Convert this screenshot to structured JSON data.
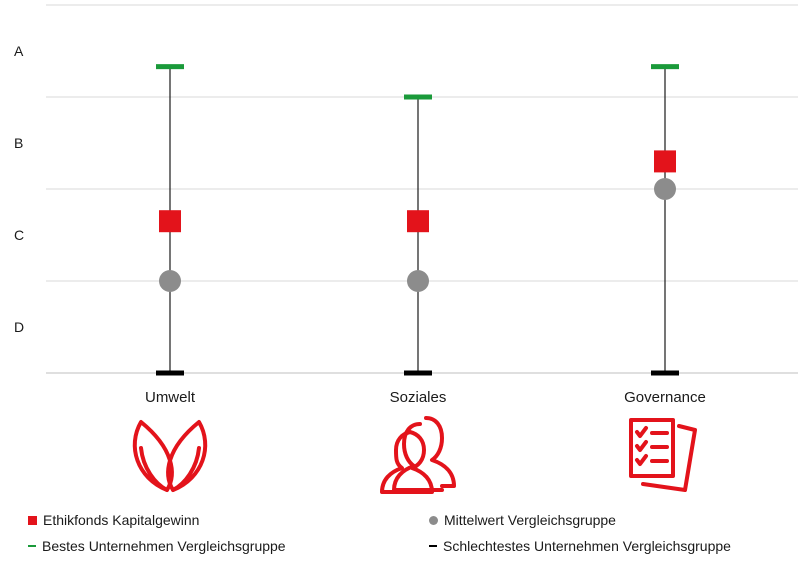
{
  "chart_data": {
    "type": "scatter",
    "title": "",
    "xlabel": "",
    "ylabel": "",
    "y_scale": [
      "A",
      "B",
      "C",
      "D"
    ],
    "y_scale_note": "Rating axis: A at top, D at bottom",
    "ylim": [
      0,
      4
    ],
    "grid": true,
    "legend_position": "bottom",
    "categories": [
      "Umwelt",
      "Soziales",
      "Governance"
    ],
    "category_icons": [
      "leaf-icon",
      "people-icon",
      "checklist-document-icon"
    ],
    "series": [
      {
        "name": "Ethikfonds Kapitalgewinn",
        "marker": "square",
        "color": "#e3131b",
        "values": [
          1.65,
          1.65,
          2.3
        ]
      },
      {
        "name": "Mittelwert Vergleichsgruppe",
        "marker": "circle",
        "color": "#8c8c8c",
        "values": [
          1.0,
          1.0,
          2.0
        ]
      },
      {
        "name": "Bestes Unternehmen Vergleichsgruppe",
        "marker": "dash",
        "color": "#1a9a3a",
        "values": [
          3.33,
          3.0,
          3.33
        ]
      },
      {
        "name": "Schlechtestes Unternehmen Vergleichsgruppe",
        "marker": "dash",
        "color": "#000000",
        "values": [
          0.0,
          0.0,
          0.0
        ]
      }
    ]
  },
  "legend": [
    {
      "label": "Ethikfonds Kapitalgewinn",
      "color": "#e3131b",
      "marker": "square"
    },
    {
      "label": "Mittelwert Vergleichsgruppe",
      "color": "#8c8c8c",
      "marker": "circle"
    },
    {
      "label": "Bestes Unternehmen Vergleichsgruppe",
      "color": "#1a9a3a",
      "marker": "dash"
    },
    {
      "label": "Schlechtestes Unternehmen Vergleichsgruppe",
      "color": "#000000",
      "marker": "dash"
    }
  ],
  "colors": {
    "accent": "#e3131b",
    "grid": "#d9d9d9"
  }
}
